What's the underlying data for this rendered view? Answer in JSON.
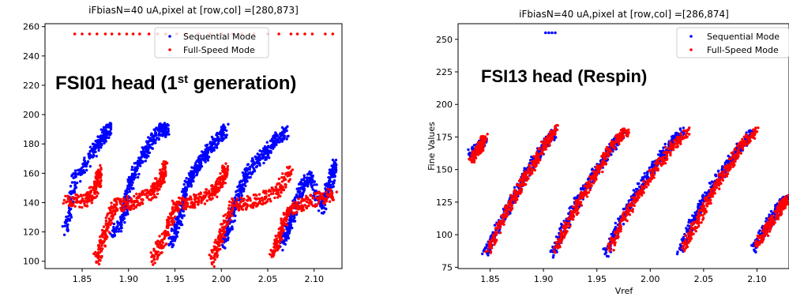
{
  "colors": {
    "sequential": "#0000ff",
    "fullspeed": "#ff0000",
    "axis": "#000000",
    "background": "#ffffff"
  },
  "chart_data": [
    {
      "type": "scatter",
      "title": "iFbiasN=40 uA,pixel at [row,col] =[280,873]",
      "overlay_text": "FSI01 head (1",
      "overlay_sup": "st",
      "overlay_suffix": " generation)",
      "xlabel": "",
      "ylabel": "",
      "xlim": [
        1.81,
        2.13
      ],
      "ylim": [
        95,
        262
      ],
      "xticks": [
        1.85,
        1.9,
        1.95,
        2.0,
        2.05,
        2.1
      ],
      "xtick_labels": [
        "1.85",
        "1.90",
        "1.95",
        "2.00",
        "2.05",
        "2.10"
      ],
      "yticks": [
        100,
        120,
        140,
        160,
        180,
        200,
        220,
        240,
        260
      ],
      "ytick_labels": [
        "100",
        "120",
        "140",
        "160",
        "180",
        "200",
        "220",
        "240",
        "260"
      ],
      "legend": {
        "placement": "top-center"
      },
      "series": [
        {
          "name": "Sequential Mode",
          "color": "#0000ff",
          "segments": [
            [
              1.832,
              120,
              1.842,
              155,
              1.862,
              175,
              1.872,
              185,
              1.88,
              191
            ],
            [
              1.882,
              118,
              1.895,
              130,
              1.9,
              150,
              1.91,
              165,
              1.922,
              180,
              1.935,
              190,
              1.942,
              189
            ],
            [
              1.945,
              112,
              1.955,
              128,
              1.962,
              150,
              1.972,
              162,
              1.982,
              172,
              1.995,
              183,
              2.005,
              190
            ],
            [
              2.002,
              112,
              2.01,
              128,
              2.02,
              148,
              2.03,
              162,
              2.045,
              172,
              2.058,
              182,
              2.07,
              189
            ],
            [
              2.065,
              112,
              2.075,
              128,
              2.085,
              148,
              2.095,
              158,
              2.108,
              136,
              2.118,
              155,
              2.122,
              166
            ]
          ]
        },
        {
          "name": "Full-Speed Mode",
          "color": "#ff0000",
          "segments": [
            [
              1.832,
              141,
              1.855,
              141,
              1.865,
              150,
              1.87,
              162
            ],
            [
              1.865,
              100,
              1.875,
              120,
              1.885,
              138,
              1.905,
              140,
              1.925,
              146,
              1.935,
              155,
              1.94,
              164
            ],
            [
              1.925,
              100,
              1.94,
              118,
              1.95,
              138,
              1.97,
              141,
              1.99,
              146,
              2.0,
              155,
              2.005,
              163
            ],
            [
              1.99,
              100,
              2.0,
              118,
              2.012,
              138,
              2.035,
              141,
              2.06,
              147,
              2.075,
              162
            ],
            [
              2.055,
              104,
              2.065,
              122,
              2.075,
              136,
              2.095,
              141,
              2.122,
              146
            ]
          ],
          "saturated_value": 255,
          "saturated_x": [
            1.842,
            1.85,
            1.858,
            1.866,
            1.875,
            1.882,
            1.89,
            1.898,
            1.905,
            1.912,
            1.922,
            1.931,
            1.94,
            1.952,
            1.962,
            1.975,
            1.988,
            2.0,
            2.012,
            2.022,
            2.035,
            2.05,
            2.062,
            2.075,
            2.082,
            2.09,
            2.098,
            2.112,
            2.12
          ]
        }
      ]
    },
    {
      "type": "scatter",
      "title": "iFbiasN=40 uA,pixel at [row,col] =[286,874]",
      "overlay_text": "FSI13 head (Respin)",
      "xlabel": "Vref",
      "ylabel": "Fine Values",
      "xlim": [
        1.82,
        2.13
      ],
      "ylim": [
        74,
        262
      ],
      "xticks": [
        1.85,
        1.9,
        1.95,
        2.0,
        2.05,
        2.1
      ],
      "xtick_labels": [
        "1.85",
        "1.90",
        "1.95",
        "2.00",
        "2.05",
        "2.10"
      ],
      "yticks": [
        75,
        100,
        125,
        150,
        175,
        200,
        225,
        250
      ],
      "ytick_labels": [
        "75",
        "100",
        "125",
        "150",
        "175",
        "200",
        "225",
        "250"
      ],
      "legend": {
        "placement": "top-right"
      },
      "series": [
        {
          "name": "Sequential Mode",
          "color": "#0000ff",
          "segments": [
            [
              1.832,
              162,
              1.84,
              168,
              1.845,
              172
            ],
            [
              1.845,
              85,
              1.86,
              110,
              1.872,
              128,
              1.885,
              148,
              1.9,
              168,
              1.912,
              180
            ],
            [
              1.908,
              85,
              1.922,
              110,
              1.935,
              130,
              1.95,
              150,
              1.965,
              168,
              1.975,
              178
            ],
            [
              1.958,
              85,
              1.972,
              110,
              1.985,
              130,
              2.0,
              148,
              2.015,
              165,
              2.03,
              180
            ],
            [
              2.028,
              88,
              2.04,
              110,
              2.052,
              130,
              2.068,
              148,
              2.082,
              165,
              2.095,
              178
            ],
            [
              2.097,
              88,
              2.11,
              108,
              2.12,
              120,
              2.126,
              128
            ]
          ],
          "saturated_value": 255,
          "saturated_x": [
            1.902,
            1.905,
            1.908,
            1.911
          ]
        },
        {
          "name": "Full-Speed Mode",
          "color": "#ff0000",
          "segments": [
            [
              1.833,
              158,
              1.84,
              166,
              1.845,
              175
            ],
            [
              1.848,
              88,
              1.862,
              112,
              1.875,
              132,
              1.888,
              150,
              1.902,
              170,
              1.912,
              182
            ],
            [
              1.912,
              88,
              1.925,
              112,
              1.938,
              132,
              1.952,
              150,
              1.965,
              170,
              1.978,
              180
            ],
            [
              1.962,
              88,
              1.975,
              112,
              1.99,
              132,
              2.005,
              150,
              2.02,
              168,
              2.035,
              180
            ],
            [
              2.032,
              90,
              2.045,
              112,
              2.058,
              132,
              2.072,
              150,
              2.085,
              168,
              2.1,
              180
            ],
            [
              2.1,
              92,
              2.112,
              108,
              2.122,
              120,
              2.128,
              128
            ]
          ]
        }
      ]
    }
  ]
}
